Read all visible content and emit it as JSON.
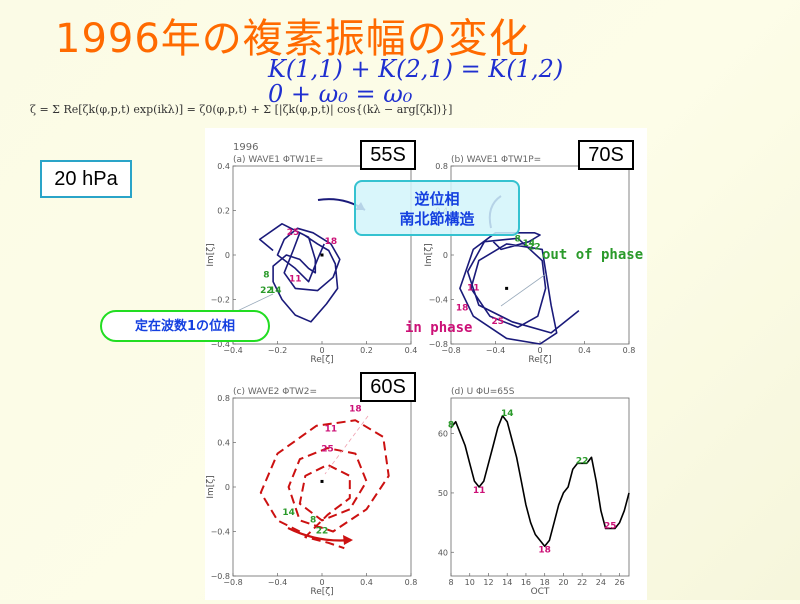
{
  "slide": {
    "title": "1996年の複素振幅の変化",
    "eq1": "K(1,1) + K(2,1) = K(1,2)",
    "eq2": "0       + ω₀       = ω₀",
    "formula": "ζ = Σ Re[ζk(φ,p,t) exp(ikλ)] = ζ0(φ,p,t) + Σ [|ζk(φ,p,t)| cos{(kλ − arg[ζk])}]",
    "hpa_label": "20 hPa",
    "box_55s": "55S",
    "box_70s": "70S",
    "box_60s": "60S",
    "callout_gyakui_line1": "逆位相",
    "callout_gyakui_line2": "南北節構造",
    "callout_teizai": "定在波数1の位相",
    "out_of_phase": "out of phase",
    "in_phase": "in phase"
  },
  "colors": {
    "navy": "#1a1a7a",
    "red": "#cc1111",
    "magenta": "#cc1177",
    "green": "#2a9a2a",
    "blue": "#1540e0"
  },
  "chart_data": [
    {
      "type": "line",
      "panel_label": "(a) WAVE1 ΦTW1E=",
      "year_label": "1996",
      "xlabel": "Re[ζ]",
      "ylabel": "Im[ζ]",
      "xlim": [
        -0.4,
        0.4
      ],
      "ylim": [
        -0.4,
        0.4
      ],
      "xticks": [
        "−0.4",
        "−0.2",
        "0",
        "0.2",
        "0.4"
      ],
      "yticks": [
        "−0.4",
        "−0.2",
        "0",
        "0.2",
        "0.4"
      ],
      "trajectory": [
        [
          -0.22,
          0.02
        ],
        [
          -0.28,
          0.07
        ],
        [
          -0.18,
          0.14
        ],
        [
          -0.08,
          0.09
        ],
        [
          -0.02,
          0.05
        ],
        [
          0.03,
          0.02
        ],
        [
          0.06,
          -0.04
        ],
        [
          0.07,
          -0.15
        ],
        [
          0.02,
          -0.22
        ],
        [
          -0.05,
          -0.3
        ],
        [
          -0.12,
          -0.27
        ],
        [
          -0.18,
          -0.2
        ],
        [
          -0.22,
          -0.12
        ],
        [
          -0.22,
          -0.05
        ],
        [
          -0.16,
          0.0
        ],
        [
          -0.1,
          -0.02
        ],
        [
          -0.06,
          -0.06
        ],
        [
          -0.03,
          -0.08
        ],
        [
          -0.03,
          -0.02
        ],
        [
          -0.06,
          0.08
        ],
        [
          -0.1,
          0.1
        ],
        [
          -0.13,
          0.02
        ],
        [
          -0.17,
          -0.08
        ],
        [
          -0.12,
          -0.15
        ],
        [
          -0.02,
          -0.16
        ],
        [
          0.05,
          -0.1
        ],
        [
          0.08,
          -0.02
        ],
        [
          0.04,
          0.05
        ],
        [
          -0.04,
          0.1
        ],
        [
          -0.11,
          0.12
        ],
        [
          -0.17,
          0.07
        ],
        [
          -0.2,
          0.0
        ],
        [
          -0.12,
          -0.06
        ],
        [
          -0.06,
          -0.12
        ],
        [
          -0.02,
          -0.02
        ],
        [
          0.01,
          0.05
        ]
      ],
      "day_labels": [
        {
          "t": "25",
          "x": -0.13,
          "y": 0.09,
          "c": "magenta"
        },
        {
          "t": "18",
          "x": 0.04,
          "y": 0.05,
          "c": "magenta"
        },
        {
          "t": "11",
          "x": -0.12,
          "y": -0.12,
          "c": "magenta"
        },
        {
          "t": "8",
          "x": -0.25,
          "y": -0.1,
          "c": "green"
        },
        {
          "t": "22",
          "x": -0.25,
          "y": -0.17,
          "c": "green"
        },
        {
          "t": "14",
          "x": -0.21,
          "y": -0.17,
          "c": "green"
        }
      ]
    },
    {
      "type": "line",
      "panel_label": "(b) WAVE1 ΦTW1P=",
      "xlabel": "Re[ζ]",
      "ylabel": "Im[ζ]",
      "xlim": [
        -0.8,
        0.8
      ],
      "ylim": [
        -0.8,
        0.8
      ],
      "xticks": [
        "−0.8",
        "−0.4",
        "0",
        "0.4",
        "0.8"
      ],
      "yticks": [
        "−0.8",
        "−0.4",
        "0",
        "0.4",
        "0.8"
      ],
      "trajectory": [
        [
          -0.42,
          0.12
        ],
        [
          -0.35,
          0.05
        ],
        [
          -0.1,
          0.12
        ],
        [
          0.0,
          0.18
        ],
        [
          -0.05,
          0.2
        ],
        [
          -0.4,
          0.2
        ],
        [
          -0.6,
          0.05
        ],
        [
          -0.72,
          -0.3
        ],
        [
          -0.6,
          -0.55
        ],
        [
          -0.3,
          -0.75
        ],
        [
          0.0,
          -0.8
        ],
        [
          0.15,
          -0.7
        ],
        [
          0.1,
          -0.45
        ],
        [
          0.02,
          0.05
        ],
        [
          -0.3,
          0.1
        ],
        [
          -0.55,
          -0.05
        ],
        [
          -0.62,
          -0.3
        ],
        [
          -0.45,
          -0.55
        ],
        [
          -0.2,
          -0.65
        ],
        [
          -0.02,
          -0.55
        ],
        [
          0.05,
          -0.3
        ],
        [
          0.02,
          -0.05
        ],
        [
          -0.2,
          0.15
        ],
        [
          -0.5,
          0.12
        ],
        [
          -0.65,
          -0.15
        ],
        [
          -0.55,
          -0.45
        ],
        [
          -0.25,
          -0.6
        ],
        [
          0.1,
          -0.7
        ],
        [
          0.35,
          -0.5
        ]
      ],
      "day_labels": [
        {
          "t": "8",
          "x": -0.2,
          "y": 0.12,
          "c": "green"
        },
        {
          "t": "14",
          "x": -0.1,
          "y": 0.08,
          "c": "green"
        },
        {
          "t": "22",
          "x": -0.05,
          "y": 0.05,
          "c": "green"
        },
        {
          "t": "11",
          "x": -0.6,
          "y": -0.32,
          "c": "magenta"
        },
        {
          "t": "18",
          "x": -0.7,
          "y": -0.5,
          "c": "magenta"
        },
        {
          "t": "25",
          "x": -0.38,
          "y": -0.62,
          "c": "magenta"
        }
      ]
    },
    {
      "type": "line",
      "panel_label": "(c) WAVE2 ΦTW2=",
      "xlabel": "Re[ζ]",
      "ylabel": "Im[ζ]",
      "xlim": [
        -0.8,
        0.8
      ],
      "ylim": [
        -0.8,
        0.8
      ],
      "xticks": [
        "−0.8",
        "−0.4",
        "0",
        "0.4",
        "0.8"
      ],
      "yticks": [
        "−0.8",
        "−0.4",
        "0",
        "0.4",
        "0.8"
      ],
      "trajectory": [
        [
          -0.2,
          -0.4
        ],
        [
          -0.4,
          -0.3
        ],
        [
          -0.55,
          -0.05
        ],
        [
          -0.4,
          0.3
        ],
        [
          -0.05,
          0.55
        ],
        [
          0.3,
          0.6
        ],
        [
          0.55,
          0.45
        ],
        [
          0.6,
          0.1
        ],
        [
          0.4,
          -0.2
        ],
        [
          0.1,
          -0.4
        ],
        [
          -0.2,
          -0.3
        ],
        [
          -0.3,
          0.0
        ],
        [
          -0.2,
          0.25
        ],
        [
          0.05,
          0.35
        ],
        [
          0.3,
          0.3
        ],
        [
          0.4,
          0.05
        ],
        [
          0.25,
          -0.2
        ],
        [
          0.0,
          -0.3
        ],
        [
          -0.2,
          -0.15
        ],
        [
          -0.15,
          0.1
        ],
        [
          0.05,
          0.2
        ],
        [
          0.25,
          0.1
        ],
        [
          0.25,
          -0.1
        ],
        [
          0.05,
          -0.25
        ],
        [
          -0.15,
          -0.45
        ],
        [
          0.05,
          -0.5
        ],
        [
          0.2,
          -0.55
        ]
      ],
      "day_labels": [
        {
          "t": "18",
          "x": 0.3,
          "y": 0.68,
          "c": "magenta"
        },
        {
          "t": "11",
          "x": 0.08,
          "y": 0.5,
          "c": "magenta"
        },
        {
          "t": "25",
          "x": 0.05,
          "y": 0.32,
          "c": "magenta"
        },
        {
          "t": "14",
          "x": -0.3,
          "y": -0.25,
          "c": "green"
        },
        {
          "t": "8",
          "x": -0.08,
          "y": -0.32,
          "c": "green"
        },
        {
          "t": "22",
          "x": 0.0,
          "y": -0.42,
          "c": "green"
        }
      ]
    },
    {
      "type": "line",
      "panel_label": "(d) U ΦU=65S",
      "xlabel": "OCT",
      "ylabel": "",
      "xlim": [
        8,
        27
      ],
      "ylim": [
        36,
        66
      ],
      "xticks": [
        "8",
        "10",
        "12",
        "14",
        "16",
        "18",
        "20",
        "22",
        "24",
        "26"
      ],
      "yticks": [
        "40",
        "50",
        "60"
      ],
      "x": [
        8,
        8.5,
        9,
        9.5,
        10,
        10.5,
        11,
        11.5,
        12,
        12.5,
        13,
        13.5,
        14,
        14.5,
        15,
        15.5,
        16,
        16.5,
        17,
        17.5,
        18,
        18.5,
        19,
        19.5,
        20,
        20.5,
        21,
        21.5,
        22,
        22.5,
        23,
        23.5,
        24,
        24.5,
        25,
        25.5,
        26,
        26.5,
        27
      ],
      "y": [
        61,
        62,
        60,
        58,
        55,
        52,
        51,
        52,
        55,
        58,
        61,
        63,
        62,
        59,
        56,
        52,
        48,
        45,
        43,
        42,
        41,
        42,
        45,
        48,
        50,
        51,
        54,
        55,
        55,
        55,
        56,
        52,
        47,
        44,
        44,
        44,
        45,
        47,
        50
      ],
      "day_labels": [
        {
          "t": "8",
          "x": 8,
          "y": 61,
          "c": "green"
        },
        {
          "t": "11",
          "x": 11,
          "y": 50,
          "c": "magenta"
        },
        {
          "t": "14",
          "x": 14,
          "y": 63,
          "c": "green"
        },
        {
          "t": "18",
          "x": 18,
          "y": 40,
          "c": "magenta"
        },
        {
          "t": "22",
          "x": 22,
          "y": 55,
          "c": "green"
        },
        {
          "t": "25",
          "x": 25,
          "y": 44,
          "c": "magenta"
        }
      ]
    }
  ]
}
